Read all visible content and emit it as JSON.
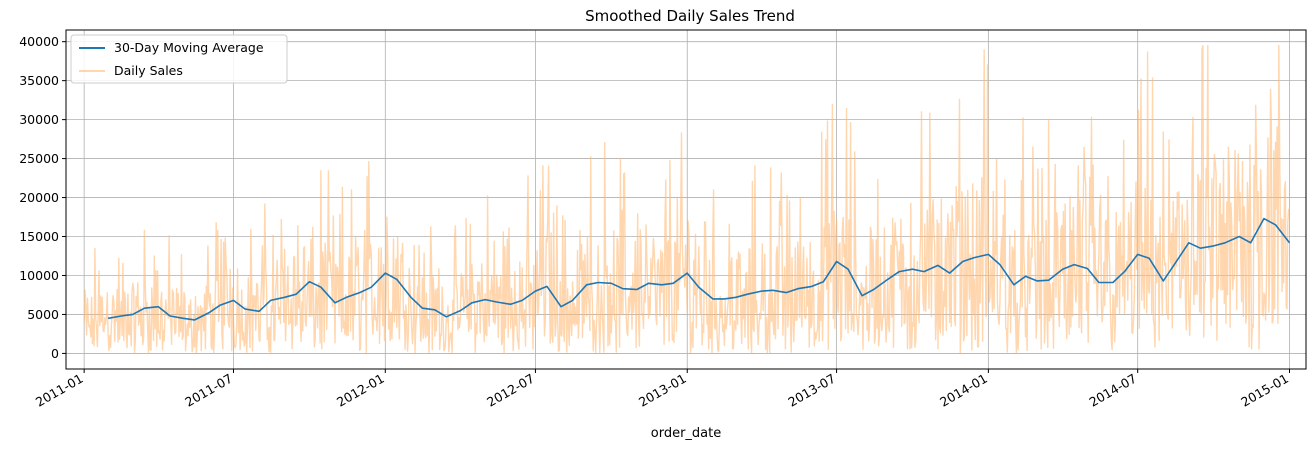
{
  "chart_data": {
    "type": "line",
    "title": "Smoothed Daily Sales Trend",
    "xlabel": "order_date",
    "ylabel": "",
    "x_range": [
      "2010-12-10",
      "2015-01-21"
    ],
    "ylim": [
      -2000,
      41500
    ],
    "x_ticks": [
      "2011-01",
      "2011-07",
      "2012-01",
      "2012-07",
      "2013-01",
      "2013-07",
      "2014-01",
      "2014-07",
      "2015-01"
    ],
    "y_ticks": [
      "0",
      "5000",
      "10000",
      "15000",
      "20000",
      "25000",
      "30000",
      "35000",
      "40000"
    ],
    "grid": true,
    "legend": {
      "placement": "top-left"
    },
    "series": [
      {
        "name": "30-Day Moving Average",
        "color": "#1f77b4",
        "x": [
          "2011-01-30",
          "2011-02-15",
          "2011-03-01",
          "2011-03-15",
          "2011-04-01",
          "2011-04-15",
          "2011-05-01",
          "2011-05-15",
          "2011-06-01",
          "2011-06-15",
          "2011-07-01",
          "2011-07-15",
          "2011-08-01",
          "2011-08-15",
          "2011-09-01",
          "2011-09-15",
          "2011-10-01",
          "2011-10-15",
          "2011-11-01",
          "2011-11-15",
          "2011-12-01",
          "2011-12-15",
          "2012-01-01",
          "2012-01-15",
          "2012-02-01",
          "2012-02-15",
          "2012-03-01",
          "2012-03-15",
          "2012-04-01",
          "2012-04-15",
          "2012-05-01",
          "2012-05-15",
          "2012-06-01",
          "2012-06-15",
          "2012-07-01",
          "2012-07-15",
          "2012-08-01",
          "2012-08-15",
          "2012-09-01",
          "2012-09-15",
          "2012-10-01",
          "2012-10-15",
          "2012-11-01",
          "2012-11-15",
          "2012-12-01",
          "2012-12-15",
          "2013-01-01",
          "2013-01-15",
          "2013-02-01",
          "2013-02-15",
          "2013-03-01",
          "2013-03-15",
          "2013-04-01",
          "2013-04-15",
          "2013-05-01",
          "2013-05-15",
          "2013-06-01",
          "2013-06-15",
          "2013-07-01",
          "2013-07-15",
          "2013-08-01",
          "2013-08-15",
          "2013-09-01",
          "2013-09-15",
          "2013-10-01",
          "2013-10-15",
          "2013-11-01",
          "2013-11-15",
          "2013-12-01",
          "2013-12-15",
          "2014-01-01",
          "2014-01-15",
          "2014-02-01",
          "2014-02-15",
          "2014-03-01",
          "2014-03-15",
          "2014-04-01",
          "2014-04-15",
          "2014-05-01",
          "2014-05-15",
          "2014-06-01",
          "2014-06-15",
          "2014-07-01",
          "2014-07-15",
          "2014-08-01",
          "2014-08-15",
          "2014-09-01",
          "2014-09-15",
          "2014-10-01",
          "2014-10-15",
          "2014-11-01",
          "2014-11-15",
          "2014-12-01",
          "2014-12-15",
          "2015-01-01"
        ],
        "values": [
          4500,
          4800,
          5000,
          5800,
          6000,
          4800,
          4500,
          4300,
          5200,
          6200,
          6800,
          5700,
          5400,
          6800,
          7200,
          7600,
          9200,
          8500,
          6500,
          7200,
          7800,
          8500,
          10300,
          9500,
          7200,
          5800,
          5600,
          4700,
          5500,
          6500,
          6900,
          6600,
          6300,
          6800,
          8000,
          8600,
          6000,
          6800,
          8800,
          9100,
          9000,
          8300,
          8200,
          9000,
          8800,
          9000,
          10300,
          8500,
          7000,
          7000,
          7200,
          7600,
          8000,
          8100,
          7800,
          8300,
          8600,
          9200,
          11800,
          10800,
          7400,
          8200,
          9500,
          10500,
          10800,
          10500,
          11300,
          10300,
          11800,
          12300,
          12700,
          11400,
          8800,
          9900,
          9300,
          9400,
          10800,
          11400,
          10900,
          9100,
          9100,
          10500,
          12700,
          12200,
          9300,
          11500,
          14200,
          13500,
          13800,
          14200,
          15000,
          14200,
          17300,
          16500,
          14200
        ]
      },
      {
        "name": "Daily Sales",
        "color": "#ffbb78",
        "x_start": "2011-01-01",
        "x_end": "2014-12-31",
        "values": []
      }
    ]
  }
}
